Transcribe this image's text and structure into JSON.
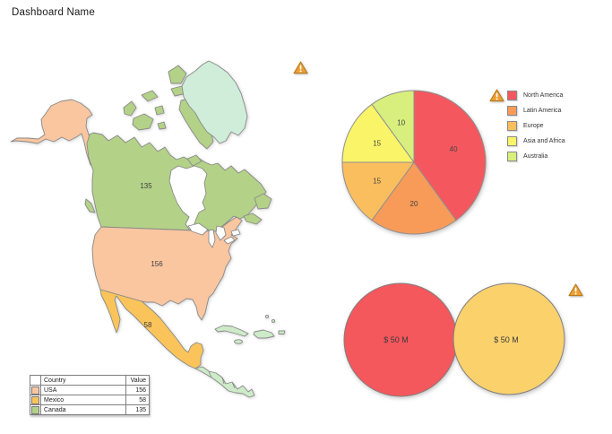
{
  "title": "Dashboard Name",
  "icons": {
    "warning": "triangle-exclamation"
  },
  "map": {
    "labels": {
      "canada": "135",
      "usa": "156",
      "mexico": "58"
    },
    "colors": {
      "canada": "#B3D287",
      "usa": "#F9C6A0",
      "mexico": "#FBC45A",
      "greenland": "#CFEDD9",
      "central_america": "#CDEBC8",
      "caribbean": "#CDEBC8",
      "water": "#FFFFFF",
      "border": "#8A8A8A"
    }
  },
  "table": {
    "headers": [
      "",
      "Country",
      "Value"
    ],
    "rows": [
      {
        "swatch": "#F9C6A0",
        "country": "USA",
        "value": "156"
      },
      {
        "swatch": "#FBC45A",
        "country": "Mexico",
        "value": "58"
      },
      {
        "swatch": "#B3D287",
        "country": "Canada",
        "value": "135"
      }
    ]
  },
  "chart_data": [
    {
      "type": "pie",
      "title": "",
      "labels": [
        "North America",
        "Latin America",
        "Europe",
        "Asia and Africa",
        "Australia"
      ],
      "values": [
        40,
        20,
        15,
        15,
        10
      ],
      "colors": [
        "#F4585E",
        "#F89B59",
        "#FBBE5F",
        "#FAF469",
        "#D8EF7D"
      ],
      "legend_position": "right",
      "start_angle_deg": 0,
      "direction": "clockwise"
    },
    {
      "type": "bubble",
      "series": [
        {
          "label": "$ 50 M",
          "value": 50,
          "color": "#F4575C"
        },
        {
          "label": "$ 50 M",
          "value": 50,
          "color": "#FBD16C"
        }
      ]
    },
    {
      "type": "choropleth",
      "title": "North America map",
      "regions": [
        {
          "name": "Canada",
          "value": 135
        },
        {
          "name": "USA",
          "value": 156
        },
        {
          "name": "Mexico",
          "value": 58
        }
      ]
    },
    {
      "type": "table",
      "columns": [
        "Country",
        "Value"
      ],
      "rows": [
        [
          "USA",
          156
        ],
        [
          "Mexico",
          58
        ],
        [
          "Canada",
          135
        ]
      ]
    }
  ]
}
